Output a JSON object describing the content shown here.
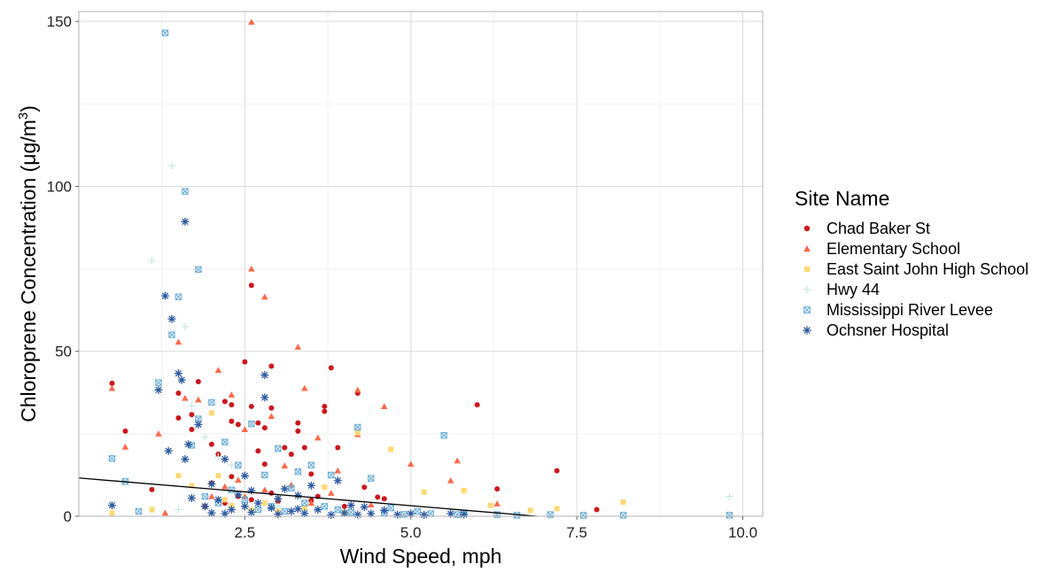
{
  "chart_data": {
    "type": "scatter",
    "xlabel": "Wind Speed, mph",
    "ylabel_main": "Chloroprene Concentration (",
    "ylabel_unit": "μg/m",
    "ylabel_sup": "3",
    "ylabel_close": ")",
    "xlim": [
      0,
      10.3
    ],
    "ylim": [
      0,
      153
    ],
    "x_ticks": [
      2.5,
      5.0,
      7.5,
      10.0
    ],
    "x_tick_labels": [
      "2.5",
      "5.0",
      "7.5",
      "10.0"
    ],
    "y_ticks": [
      0,
      50,
      100,
      150
    ],
    "y_tick_labels": [
      "0",
      "50",
      "100",
      "150"
    ],
    "grid": true,
    "legend_position": "right",
    "legend_title": "Site Name",
    "trend_line": {
      "x": [
        0.0,
        6.9
      ],
      "y": [
        11.6,
        0
      ]
    },
    "series": [
      {
        "name": "Chad Baker St",
        "color": "#cb181d",
        "marker": "circle",
        "points": [
          [
            0.5,
            40.3
          ],
          [
            0.7,
            25.8
          ],
          [
            1.1,
            8.1
          ],
          [
            1.5,
            37.3
          ],
          [
            1.5,
            29.8
          ],
          [
            1.7,
            30.8
          ],
          [
            1.7,
            26.3
          ],
          [
            1.8,
            40.8
          ],
          [
            2.0,
            21.8
          ],
          [
            2.1,
            18.8
          ],
          [
            2.2,
            34.8
          ],
          [
            2.3,
            28.8
          ],
          [
            2.3,
            33.8
          ],
          [
            2.4,
            27.8
          ],
          [
            2.5,
            46.8
          ],
          [
            2.6,
            70.0
          ],
          [
            2.6,
            33.3
          ],
          [
            2.7,
            19.8
          ],
          [
            2.7,
            28.3
          ],
          [
            2.8,
            26.8
          ],
          [
            2.8,
            15.8
          ],
          [
            2.9,
            32.8
          ],
          [
            2.9,
            45.5
          ],
          [
            3.1,
            20.8
          ],
          [
            3.2,
            18.8
          ],
          [
            3.3,
            28.3
          ],
          [
            3.3,
            25.8
          ],
          [
            3.4,
            20.8
          ],
          [
            3.5,
            12.8
          ],
          [
            3.7,
            31.8
          ],
          [
            3.7,
            33.3
          ],
          [
            3.8,
            45.0
          ],
          [
            3.9,
            20.8
          ],
          [
            4.2,
            37.3
          ],
          [
            4.3,
            8.8
          ],
          [
            4.5,
            5.8
          ],
          [
            4.6,
            5.3
          ],
          [
            6.0,
            33.8
          ],
          [
            6.3,
            8.3
          ],
          [
            7.2,
            13.8
          ],
          [
            7.8,
            2.0
          ],
          [
            2.2,
            4.0
          ],
          [
            2.6,
            5.0
          ],
          [
            3.0,
            4.5
          ],
          [
            3.5,
            4.8
          ],
          [
            2.0,
            10.0
          ],
          [
            2.3,
            12.0
          ],
          [
            2.9,
            7.0
          ],
          [
            3.6,
            6.0
          ],
          [
            4.0,
            3.0
          ],
          [
            1.9,
            3.0
          ],
          [
            2.4,
            6.0
          ]
        ]
      },
      {
        "name": "Elementary School",
        "color": "#fb6a4a",
        "marker": "triangle",
        "points": [
          [
            0.5,
            38.8
          ],
          [
            0.7,
            21.0
          ],
          [
            1.2,
            25.0
          ],
          [
            1.3,
            1.0
          ],
          [
            1.5,
            52.8
          ],
          [
            1.6,
            35.8
          ],
          [
            1.8,
            35.3
          ],
          [
            2.1,
            44.3
          ],
          [
            2.3,
            36.8
          ],
          [
            2.5,
            26.3
          ],
          [
            2.6,
            149.8
          ],
          [
            2.6,
            75.0
          ],
          [
            2.8,
            66.5
          ],
          [
            2.9,
            30.3
          ],
          [
            3.1,
            15.3
          ],
          [
            3.3,
            51.3
          ],
          [
            3.4,
            38.8
          ],
          [
            3.6,
            23.8
          ],
          [
            3.9,
            13.8
          ],
          [
            4.2,
            38.3
          ],
          [
            4.2,
            24.8
          ],
          [
            4.6,
            33.3
          ],
          [
            5.0,
            15.8
          ],
          [
            5.6,
            10.8
          ],
          [
            5.7,
            16.8
          ],
          [
            6.3,
            3.8
          ],
          [
            2.2,
            9.0
          ],
          [
            2.5,
            6.0
          ],
          [
            2.8,
            8.0
          ],
          [
            3.0,
            5.5
          ],
          [
            3.2,
            9.5
          ],
          [
            3.8,
            7.0
          ],
          [
            2.0,
            6.0
          ],
          [
            2.4,
            11.0
          ],
          [
            3.5,
            4.0
          ],
          [
            4.4,
            3.5
          ]
        ]
      },
      {
        "name": "East Saint John High School",
        "color": "#fed976",
        "marker": "square",
        "points": [
          [
            0.5,
            1.0
          ],
          [
            1.1,
            2.0
          ],
          [
            1.5,
            12.3
          ],
          [
            1.7,
            9.3
          ],
          [
            2.0,
            31.3
          ],
          [
            2.1,
            12.3
          ],
          [
            2.3,
            3.3
          ],
          [
            3.7,
            8.8
          ],
          [
            4.2,
            25.3
          ],
          [
            4.7,
            20.3
          ],
          [
            5.2,
            7.3
          ],
          [
            5.8,
            7.8
          ],
          [
            6.2,
            3.3
          ],
          [
            6.8,
            1.8
          ],
          [
            7.2,
            2.3
          ],
          [
            8.2,
            4.3
          ],
          [
            2.6,
            2.0
          ],
          [
            3.0,
            1.5
          ],
          [
            3.4,
            2.5
          ],
          [
            4.0,
            1.0
          ],
          [
            2.2,
            5.0
          ],
          [
            2.8,
            4.0
          ]
        ]
      },
      {
        "name": "Hwy 44",
        "color": "#c7e9e2",
        "marker": "plus",
        "points": [
          [
            1.1,
            77.5
          ],
          [
            1.4,
            106.3
          ],
          [
            1.6,
            57.5
          ],
          [
            1.7,
            33.5
          ],
          [
            1.9,
            24.0
          ],
          [
            2.3,
            15.5
          ],
          [
            9.8,
            6.0
          ],
          [
            2.1,
            18.0
          ],
          [
            2.5,
            12.0
          ],
          [
            3.0,
            3.0
          ],
          [
            1.5,
            2.0
          ],
          [
            3.6,
            1.5
          ]
        ]
      },
      {
        "name": "Mississippi River Levee",
        "color": "#6baed6",
        "marker": "xsquare",
        "points": [
          [
            0.5,
            17.5
          ],
          [
            0.7,
            10.5
          ],
          [
            0.9,
            1.5
          ],
          [
            1.2,
            40.5
          ],
          [
            1.3,
            146.5
          ],
          [
            1.4,
            55.0
          ],
          [
            1.5,
            66.5
          ],
          [
            1.6,
            98.5
          ],
          [
            1.7,
            21.5
          ],
          [
            1.8,
            74.8
          ],
          [
            1.8,
            29.5
          ],
          [
            2.0,
            34.5
          ],
          [
            2.2,
            22.5
          ],
          [
            2.4,
            15.5
          ],
          [
            2.6,
            28.0
          ],
          [
            2.8,
            12.5
          ],
          [
            3.0,
            20.5
          ],
          [
            3.2,
            8.5
          ],
          [
            3.3,
            13.5
          ],
          [
            3.5,
            15.5
          ],
          [
            3.8,
            12.5
          ],
          [
            4.2,
            27.0
          ],
          [
            4.4,
            11.5
          ],
          [
            4.7,
            2.5
          ],
          [
            5.1,
            1.5
          ],
          [
            5.5,
            24.5
          ],
          [
            5.8,
            1.0
          ],
          [
            6.3,
            0.5
          ],
          [
            7.1,
            0.5
          ],
          [
            7.6,
            0.3
          ],
          [
            8.2,
            0.3
          ],
          [
            9.8,
            0.3
          ],
          [
            2.1,
            4.0
          ],
          [
            2.5,
            5.0
          ],
          [
            2.9,
            3.0
          ],
          [
            3.4,
            4.0
          ],
          [
            3.9,
            2.0
          ],
          [
            4.6,
            1.0
          ],
          [
            5.3,
            0.8
          ],
          [
            1.9,
            6.0
          ],
          [
            2.3,
            8.0
          ],
          [
            2.7,
            2.0
          ],
          [
            3.1,
            1.5
          ],
          [
            3.7,
            3.0
          ],
          [
            4.1,
            1.2
          ],
          [
            4.9,
            0.6
          ],
          [
            5.7,
            0.5
          ],
          [
            6.6,
            0.3
          ]
        ]
      },
      {
        "name": "Ochsner Hospital",
        "color": "#2c5aa0",
        "marker": "asterisk",
        "points": [
          [
            0.5,
            3.3
          ],
          [
            1.2,
            38.3
          ],
          [
            1.3,
            66.8
          ],
          [
            1.35,
            19.8
          ],
          [
            1.4,
            59.8
          ],
          [
            1.5,
            43.3
          ],
          [
            1.55,
            41.3
          ],
          [
            1.6,
            89.3
          ],
          [
            1.65,
            21.8
          ],
          [
            1.6,
            17.3
          ],
          [
            1.8,
            27.8
          ],
          [
            2.0,
            9.8
          ],
          [
            2.2,
            17.3
          ],
          [
            2.5,
            12.3
          ],
          [
            2.6,
            7.8
          ],
          [
            2.8,
            42.8
          ],
          [
            2.8,
            36.0
          ],
          [
            3.0,
            5.3
          ],
          [
            3.1,
            8.3
          ],
          [
            3.3,
            6.3
          ],
          [
            3.5,
            9.3
          ],
          [
            3.9,
            10.8
          ],
          [
            4.1,
            3.3
          ],
          [
            4.3,
            2.8
          ],
          [
            4.6,
            1.8
          ],
          [
            5.0,
            0.8
          ],
          [
            5.6,
            0.8
          ],
          [
            5.8,
            0.5
          ],
          [
            1.9,
            3.0
          ],
          [
            2.1,
            5.0
          ],
          [
            2.3,
            2.0
          ],
          [
            2.4,
            6.5
          ],
          [
            2.7,
            4.0
          ],
          [
            2.9,
            2.5
          ],
          [
            3.2,
            1.5
          ],
          [
            3.6,
            2.0
          ],
          [
            4.0,
            1.0
          ],
          [
            4.4,
            0.8
          ],
          [
            4.8,
            0.5
          ],
          [
            2.0,
            1.0
          ],
          [
            2.2,
            0.8
          ],
          [
            2.6,
            1.2
          ],
          [
            3.0,
            0.6
          ],
          [
            3.4,
            0.9
          ],
          [
            3.8,
            0.4
          ],
          [
            1.7,
            5.5
          ],
          [
            2.5,
            3.0
          ],
          [
            3.3,
            2.2
          ],
          [
            4.2,
            0.5
          ],
          [
            5.2,
            0.4
          ]
        ]
      }
    ]
  }
}
